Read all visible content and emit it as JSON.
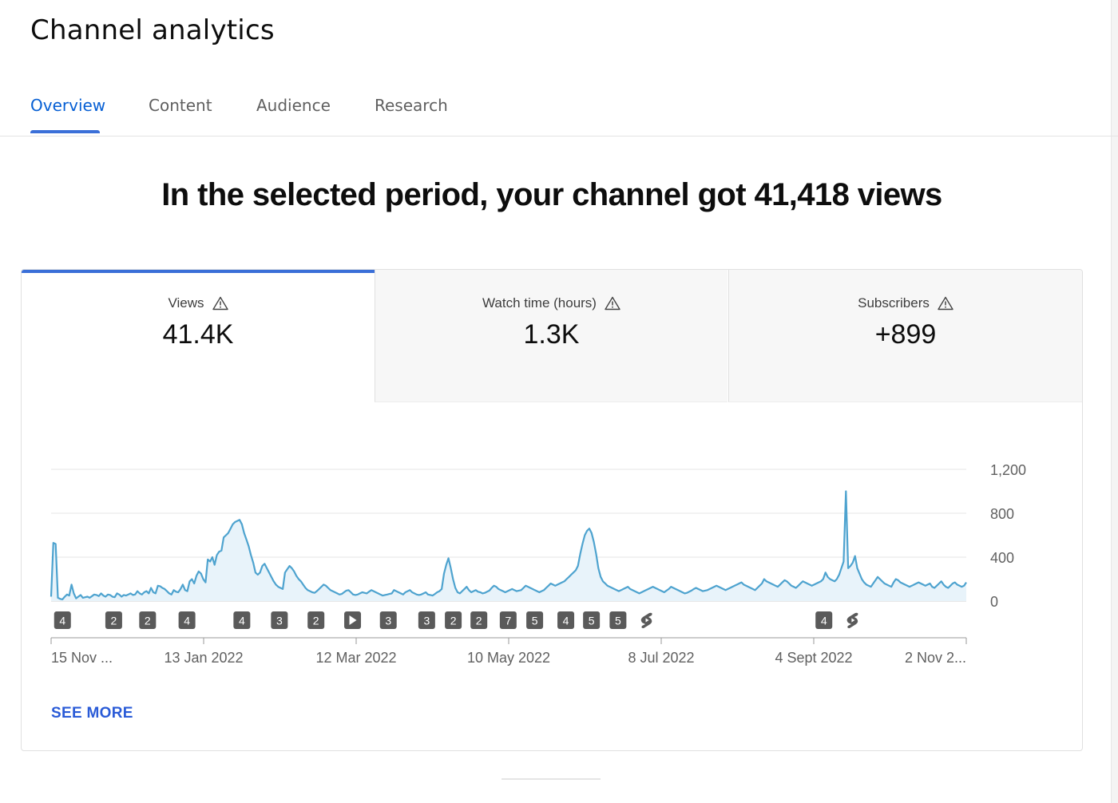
{
  "page": {
    "title": "Channel analytics",
    "headline": "In the selected period, your channel got 41,418 views",
    "see_more": "SEE MORE"
  },
  "tabs": [
    {
      "label": "Overview",
      "active": true
    },
    {
      "label": "Content",
      "active": false
    },
    {
      "label": "Audience",
      "active": false
    },
    {
      "label": "Research",
      "active": false
    }
  ],
  "metrics": [
    {
      "label": "Views",
      "value": "41.4K",
      "active": true,
      "icon": "warning-icon"
    },
    {
      "label": "Watch time (hours)",
      "value": "1.3K",
      "active": false,
      "icon": "warning-icon"
    },
    {
      "label": "Subscribers",
      "value": "+899",
      "active": false,
      "icon": "warning-icon"
    }
  ],
  "colors": {
    "accent": "#3a6fd8",
    "link": "#2a5bd7",
    "line": "#4ea3cf",
    "area": "#e8f3fa",
    "marker_bg": "#5a5a5a"
  },
  "chart_data": {
    "type": "area",
    "series": [
      {
        "values": [
          40,
          530,
          520,
          30,
          20,
          15,
          40,
          60,
          50,
          150,
          70,
          25,
          40,
          55,
          30,
          35,
          40,
          30,
          45,
          60,
          55,
          45,
          70,
          50,
          40,
          60,
          55,
          40,
          35,
          70,
          60,
          40,
          55,
          50,
          60,
          70,
          55,
          60,
          90,
          70,
          60,
          80,
          90,
          70,
          120,
          80,
          70,
          140,
          135,
          120,
          110,
          90,
          70,
          60,
          100,
          85,
          80,
          110,
          150,
          100,
          90,
          180,
          200,
          160,
          230,
          270,
          250,
          200,
          170,
          380,
          360,
          400,
          330,
          420,
          450,
          460,
          580,
          600,
          620,
          660,
          700,
          720,
          730,
          740,
          700,
          620,
          560,
          500,
          420,
          350,
          260,
          240,
          260,
          320,
          340,
          300,
          260,
          220,
          180,
          150,
          130,
          120,
          110,
          260,
          290,
          320,
          300,
          270,
          230,
          200,
          180,
          150,
          120,
          100,
          90,
          80,
          75,
          90,
          110,
          130,
          150,
          140,
          120,
          100,
          90,
          80,
          70,
          60,
          65,
          80,
          95,
          100,
          80,
          60,
          55,
          60,
          70,
          80,
          75,
          70,
          85,
          100,
          90,
          80,
          70,
          60,
          50,
          55,
          60,
          65,
          70,
          100,
          90,
          80,
          70,
          60,
          80,
          90,
          100,
          80,
          70,
          60,
          55,
          60,
          70,
          80,
          60,
          55,
          50,
          65,
          80,
          90,
          110,
          250,
          330,
          390,
          300,
          200,
          120,
          80,
          70,
          90,
          110,
          130,
          100,
          80,
          90,
          100,
          85,
          80,
          70,
          75,
          85,
          95,
          120,
          140,
          130,
          110,
          100,
          90,
          80,
          90,
          100,
          110,
          100,
          90,
          95,
          100,
          120,
          140,
          130,
          120,
          110,
          100,
          90,
          80,
          90,
          100,
          120,
          140,
          160,
          150,
          140,
          150,
          160,
          170,
          180,
          200,
          220,
          240,
          260,
          280,
          320,
          430,
          520,
          600,
          640,
          660,
          620,
          540,
          430,
          300,
          220,
          180,
          160,
          140,
          130,
          120,
          110,
          100,
          90,
          100,
          110,
          120,
          130,
          110,
          100,
          90,
          80,
          70,
          80,
          90,
          100,
          110,
          120,
          130,
          120,
          110,
          100,
          90,
          80,
          95,
          110,
          130,
          120,
          110,
          100,
          90,
          80,
          70,
          75,
          85,
          95,
          110,
          120,
          110,
          100,
          90,
          95,
          100,
          110,
          120,
          130,
          140,
          130,
          120,
          110,
          100,
          110,
          120,
          130,
          140,
          150,
          160,
          170,
          150,
          140,
          130,
          120,
          110,
          100,
          120,
          140,
          160,
          200,
          180,
          170,
          160,
          150,
          140,
          130,
          150,
          170,
          190,
          180,
          160,
          140,
          130,
          120,
          140,
          160,
          180,
          170,
          160,
          150,
          140,
          150,
          160,
          170,
          180,
          200,
          260,
          220,
          200,
          190,
          180,
          200,
          240,
          300,
          360,
          1000,
          300,
          320,
          350,
          410,
          300,
          250,
          200,
          170,
          150,
          140,
          130,
          160,
          190,
          220,
          200,
          180,
          160,
          150,
          140,
          130,
          170,
          200,
          190,
          170,
          160,
          150,
          140,
          130,
          140,
          150,
          160,
          170,
          160,
          150,
          140,
          150,
          160,
          130,
          120,
          140,
          160,
          180,
          150,
          130,
          120,
          140,
          160,
          170,
          150,
          140,
          130,
          140,
          170
        ],
        "note": ""
      }
    ],
    "x_tick_labels": [
      "15 Nov ...",
      "13 Jan 2022",
      "12 Mar 2022",
      "10 May 2022",
      "8 Jul 2022",
      "4 Sept 2022",
      "2 Nov 2..."
    ],
    "y_ticks": [
      0,
      400,
      800,
      1200
    ],
    "y_tick_labels": [
      "0",
      "400",
      "800",
      "1,200"
    ],
    "ylim": [
      0,
      1200
    ],
    "grid": true,
    "markers": [
      {
        "label": "4",
        "kind": "count",
        "position": 0.012
      },
      {
        "label": "2",
        "kind": "count",
        "position": 0.068
      },
      {
        "label": "2",
        "kind": "count",
        "position": 0.105
      },
      {
        "label": "4",
        "kind": "count",
        "position": 0.148
      },
      {
        "label": "4",
        "kind": "count",
        "position": 0.208
      },
      {
        "label": "3",
        "kind": "count",
        "position": 0.249
      },
      {
        "label": "2",
        "kind": "count",
        "position": 0.289
      },
      {
        "label": "",
        "kind": "play",
        "position": 0.329
      },
      {
        "label": "3",
        "kind": "count",
        "position": 0.368
      },
      {
        "label": "3",
        "kind": "count",
        "position": 0.41
      },
      {
        "label": "2",
        "kind": "count",
        "position": 0.439
      },
      {
        "label": "2",
        "kind": "count",
        "position": 0.467
      },
      {
        "label": "7",
        "kind": "count",
        "position": 0.499
      },
      {
        "label": "5",
        "kind": "count",
        "position": 0.528
      },
      {
        "label": "4",
        "kind": "count",
        "position": 0.562
      },
      {
        "label": "5",
        "kind": "count",
        "position": 0.59
      },
      {
        "label": "5",
        "kind": "count",
        "position": 0.619
      },
      {
        "label": "",
        "kind": "shorts",
        "position": 0.651
      },
      {
        "label": "4",
        "kind": "count",
        "position": 0.844
      },
      {
        "label": "",
        "kind": "shorts",
        "position": 0.876
      }
    ]
  }
}
